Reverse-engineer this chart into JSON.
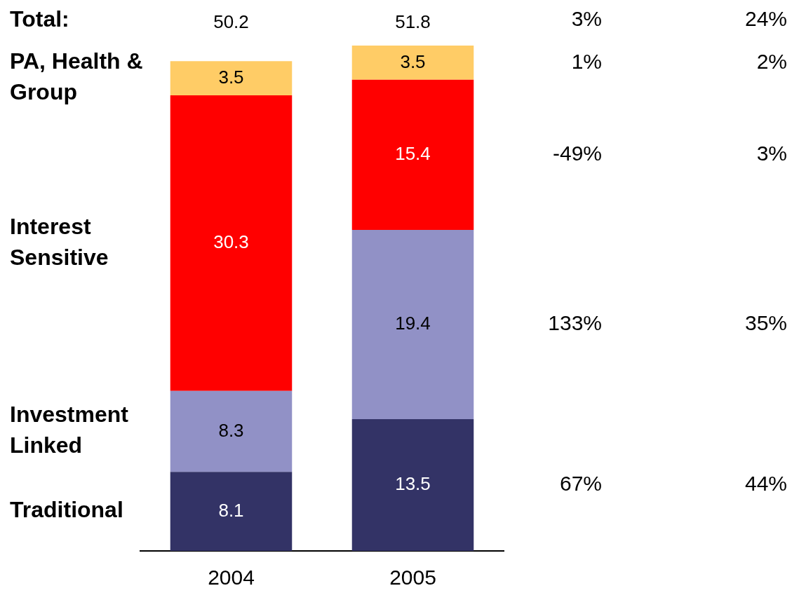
{
  "chart_data": {
    "type": "bar",
    "stacked": true,
    "categories": [
      "2004",
      "2005"
    ],
    "series": [
      {
        "name": "Traditional",
        "color": "#333366",
        "values": [
          8.1,
          13.5
        ]
      },
      {
        "name": "Investment Linked",
        "color": "#9191c6",
        "values": [
          8.3,
          19.4
        ]
      },
      {
        "name": "Interest Sensitive",
        "color": "#ff0000",
        "values": [
          30.3,
          15.4
        ]
      },
      {
        "name": "PA, Health & Group",
        "color": "#ffcc66",
        "values": [
          3.5,
          3.5
        ]
      }
    ],
    "data_labels": true,
    "totals": [
      "50.2",
      "51.8"
    ],
    "tick_labels": "x",
    "grid": false,
    "legend": false,
    "annotations": [
      "Total:",
      "3%",
      "24%",
      "1%",
      "2%",
      "-49%",
      "3%",
      "133%",
      "35%",
      "67%",
      "44%"
    ]
  }
}
